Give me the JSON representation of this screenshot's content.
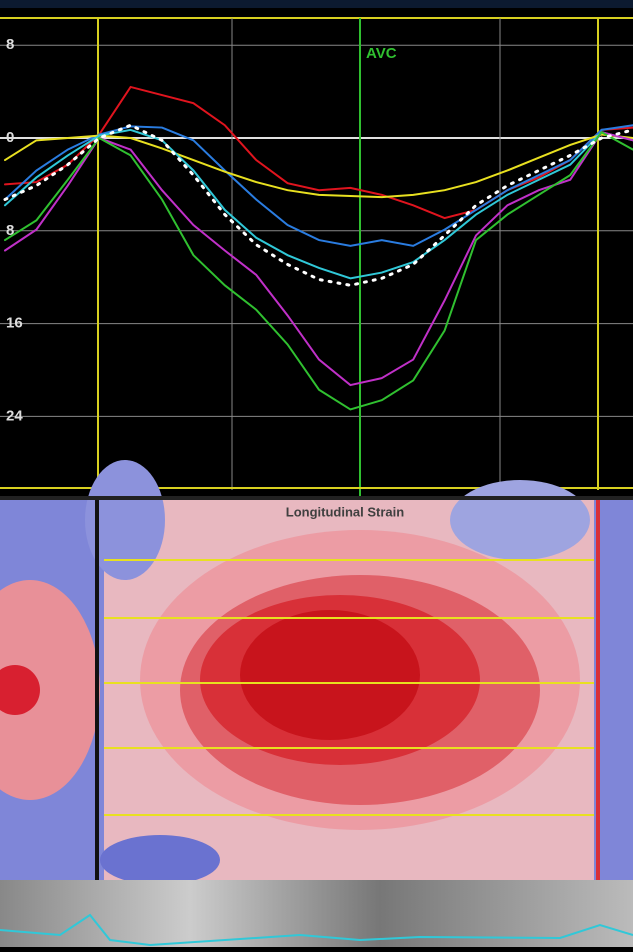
{
  "chart_data": {
    "type": "line",
    "annotations": [
      "AVC",
      "Longitudinal Strain"
    ],
    "x": [
      0,
      1,
      2,
      3,
      4,
      5,
      6,
      7,
      8,
      9,
      10,
      11,
      12,
      13,
      14,
      15,
      16,
      17,
      18,
      19,
      20
    ],
    "xlim": [
      0,
      20
    ],
    "ylim": [
      -30,
      10
    ],
    "yticks": [
      {
        "value": 8,
        "label": "8"
      },
      0,
      {
        "value": -8,
        "label": "8"
      },
      {
        "value": -16,
        "label": "16"
      },
      {
        "value": -24,
        "label": "24"
      }
    ],
    "grid": true,
    "series": [
      {
        "color": "#e0141e",
        "values": [
          -4,
          -3.8,
          -2.3,
          0.3,
          4.4,
          3.7,
          3,
          1.1,
          -1.9,
          -3.9,
          -4.5,
          -4.3,
          -4.9,
          -5.8,
          -6.9,
          -6.2,
          -4.5,
          -3.4,
          -1.9,
          0.7,
          0.9
        ]
      },
      {
        "color": "#2a7ce0",
        "values": [
          -5.3,
          -2.8,
          -1,
          0.3,
          1,
          0.9,
          -0.2,
          -2.8,
          -5.3,
          -7.5,
          -8.8,
          -9.3,
          -8.8,
          -9.3,
          -7.9,
          -6.2,
          -4.5,
          -3.2,
          -1.9,
          0.7,
          1.1
        ]
      },
      {
        "color": "#e8e020",
        "values": [
          -1.9,
          -0.2,
          0,
          0.2,
          0,
          -0.9,
          -1.9,
          -2.9,
          -3.8,
          -4.5,
          -4.9,
          -5,
          -5.1,
          -4.9,
          -4.5,
          -3.8,
          -2.8,
          -1.7,
          -0.6,
          0.3,
          0
        ]
      },
      {
        "color": "#30c8d8",
        "values": [
          -5.8,
          -3.4,
          -1.5,
          0.2,
          0.7,
          -0.2,
          -2.8,
          -6.2,
          -8.6,
          -10.1,
          -11.2,
          -12.1,
          -11.6,
          -10.7,
          -8.8,
          -6.6,
          -4.9,
          -3.6,
          -2.3,
          0.5,
          -0.2
        ]
      },
      {
        "color": "#c030c8",
        "values": [
          -9.7,
          -7.9,
          -4.1,
          0,
          -1,
          -4.5,
          -7.5,
          -9.7,
          -11.8,
          -15.3,
          -19.1,
          -21.3,
          -20.7,
          -19.1,
          -14,
          -8.4,
          -5.8,
          -4.5,
          -3.6,
          0.5,
          -0.2
        ]
      },
      {
        "color": "#30c030",
        "values": [
          -8.8,
          -7.1,
          -3.6,
          0,
          -1.5,
          -5.3,
          -10.1,
          -12.7,
          -14.8,
          -17.8,
          -21.7,
          -23.4,
          -22.6,
          -20.9,
          -16.6,
          -8.8,
          -6.6,
          -4.9,
          -3.2,
          0.5,
          -1
        ]
      },
      {
        "color": "#ffffff",
        "values": [
          -5.3,
          -4.1,
          -2.3,
          0,
          1.1,
          -0.2,
          -3.2,
          -6.6,
          -9.2,
          -10.9,
          -12.2,
          -12.7,
          -12.1,
          -10.9,
          -8.4,
          -5.8,
          -4.1,
          -2.8,
          -1.5,
          0,
          0.7
        ]
      }
    ]
  }
}
